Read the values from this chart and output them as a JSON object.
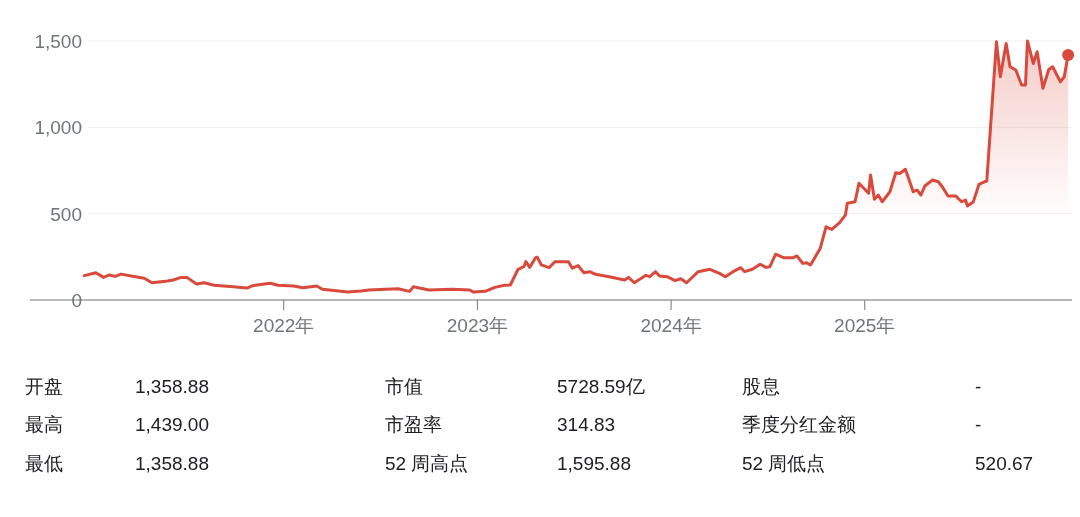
{
  "chart_data": {
    "type": "area",
    "xlim": [
      2020.69,
      2026.07
    ],
    "ylim": [
      0,
      1500
    ],
    "xticks": [
      {
        "value": 2022,
        "label": "2022年"
      },
      {
        "value": 2023,
        "label": "2023年"
      },
      {
        "value": 2024,
        "label": "2024年"
      },
      {
        "value": 2025,
        "label": "2025年"
      }
    ],
    "yticks": [
      0,
      {
        "value": 500,
        "label": "500"
      },
      {
        "value": 1000,
        "label": "1,000"
      },
      {
        "value": 1500,
        "label": "1,500"
      }
    ],
    "grid": "y",
    "series": [
      {
        "color": "#d9493c",
        "x": [
          2020.97,
          2021.03,
          2021.07,
          2021.1,
          2021.13,
          2021.16,
          2021.22,
          2021.28,
          2021.32,
          2021.4,
          2021.43,
          2021.47,
          2021.5,
          2021.55,
          2021.59,
          2021.64,
          2021.74,
          2021.81,
          2021.84,
          2021.9,
          2021.93,
          2021.97,
          2022.05,
          2022.1,
          2022.17,
          2022.2,
          2022.33,
          2022.4,
          2022.44,
          2022.59,
          2022.65,
          2022.67,
          2022.75,
          2022.87,
          2022.96,
          2022.98,
          2023.04,
          2023.09,
          2023.14,
          2023.17,
          2023.21,
          2023.24,
          2023.25,
          2023.27,
          2023.3,
          2023.31,
          2023.33,
          2023.37,
          2023.4,
          2023.47,
          2023.49,
          2023.52,
          2023.55,
          2023.58,
          2023.61,
          2023.68,
          2023.76,
          2023.78,
          2023.81,
          2023.87,
          2023.89,
          2023.92,
          2023.94,
          2023.98,
          2024.02,
          2024.05,
          2024.08,
          2024.14,
          2024.2,
          2024.25,
          2024.28,
          2024.32,
          2024.36,
          2024.38,
          2024.42,
          2024.46,
          2024.49,
          2024.51,
          2024.54,
          2024.58,
          2024.63,
          2024.65,
          2024.68,
          2024.7,
          2024.72,
          2024.77,
          2024.8,
          2024.83,
          2024.87,
          2024.9,
          2024.91,
          2024.95,
          2024.97,
          2025.02,
          2025.03,
          2025.05,
          2025.07,
          2025.09,
          2025.13,
          2025.16,
          2025.18,
          2025.21,
          2025.25,
          2025.27,
          2025.29,
          2025.31,
          2025.35,
          2025.38,
          2025.4,
          2025.43,
          2025.47,
          2025.5,
          2025.52,
          2025.53,
          2025.56,
          2025.59,
          2025.62,
          2025.63,
          2025.68,
          2025.7,
          2025.73,
          2025.75,
          2025.78,
          2025.81,
          2025.83,
          2025.84,
          2025.87,
          2025.89,
          2025.92,
          2025.95,
          2025.97,
          2026.01,
          2026.03,
          2026.05
        ],
        "values": [
          141,
          158,
          131,
          145,
          137,
          150,
          137,
          126,
          100,
          110,
          116,
          131,
          131,
          93,
          100,
          85,
          77,
          69,
          83,
          93,
          97,
          85,
          81,
          71,
          81,
          62,
          46,
          52,
          58,
          65,
          50,
          77,
          58,
          62,
          58,
          46,
          50,
          73,
          85,
          87,
          178,
          193,
          222,
          189,
          245,
          247,
          203,
          187,
          222,
          222,
          184,
          199,
          158,
          164,
          149,
          135,
          116,
          131,
          100,
          143,
          135,
          164,
          139,
          135,
          112,
          123,
          100,
          164,
          178,
          154,
          135,
          164,
          187,
          164,
          178,
          207,
          189,
          193,
          265,
          245,
          245,
          255,
          212,
          216,
          203,
          299,
          424,
          409,
          448,
          492,
          560,
          569,
          676,
          618,
          724,
          583,
          608,
          569,
          627,
          737,
          733,
          757,
          627,
          637,
          608,
          660,
          695,
          685,
          656,
          602,
          602,
          569,
          579,
          544,
          567,
          670,
          685,
          689,
          1495,
          1293,
          1486,
          1351,
          1332,
          1245,
          1245,
          1500,
          1370,
          1438,
          1226,
          1335,
          1351,
          1264,
          1293,
          1419
        ]
      },
      {
        "type": "scatter",
        "color": "#d9493c",
        "x": [
          2026.05
        ],
        "values": [
          1419
        ]
      }
    ],
    "annotations": [
      "开盘",
      "1,358.88",
      "市值",
      "5728.59亿",
      "股息",
      "-",
      "最高",
      "1,439.00",
      "市盈率",
      "314.83",
      "季度分红金额",
      "-",
      "最低",
      "1,358.88",
      "52 周高点",
      "1,595.88",
      "52 周低点",
      "520.67"
    ]
  }
}
